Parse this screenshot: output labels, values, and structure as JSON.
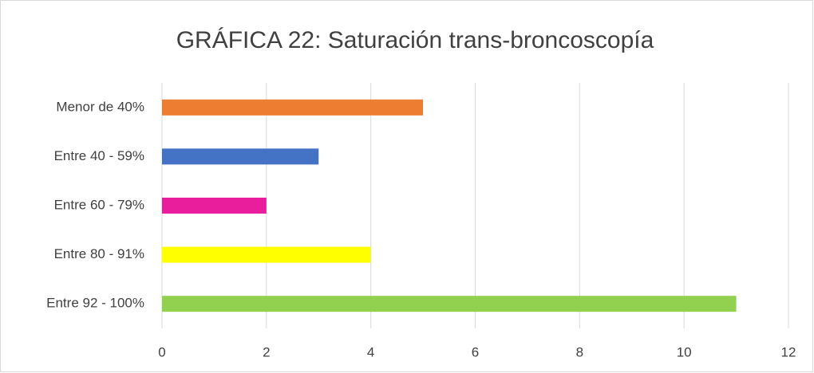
{
  "chart_data": {
    "type": "barh",
    "title": "GRÁFICA 22: Saturación trans-broncoscopía",
    "categories": [
      "Menor de 40%",
      "Entre 40 - 59%",
      "Entre 60 - 79%",
      "Entre 80 - 91%",
      "Entre 92 - 100%"
    ],
    "values": [
      5,
      3,
      2,
      4,
      11
    ],
    "colors": [
      "#ed7d31",
      "#4472c4",
      "#e91e9c",
      "#ffff00",
      "#92d050"
    ],
    "xlim": [
      0,
      12
    ],
    "xticks": [
      0,
      2,
      4,
      6,
      8,
      10,
      12
    ],
    "grid": true
  }
}
